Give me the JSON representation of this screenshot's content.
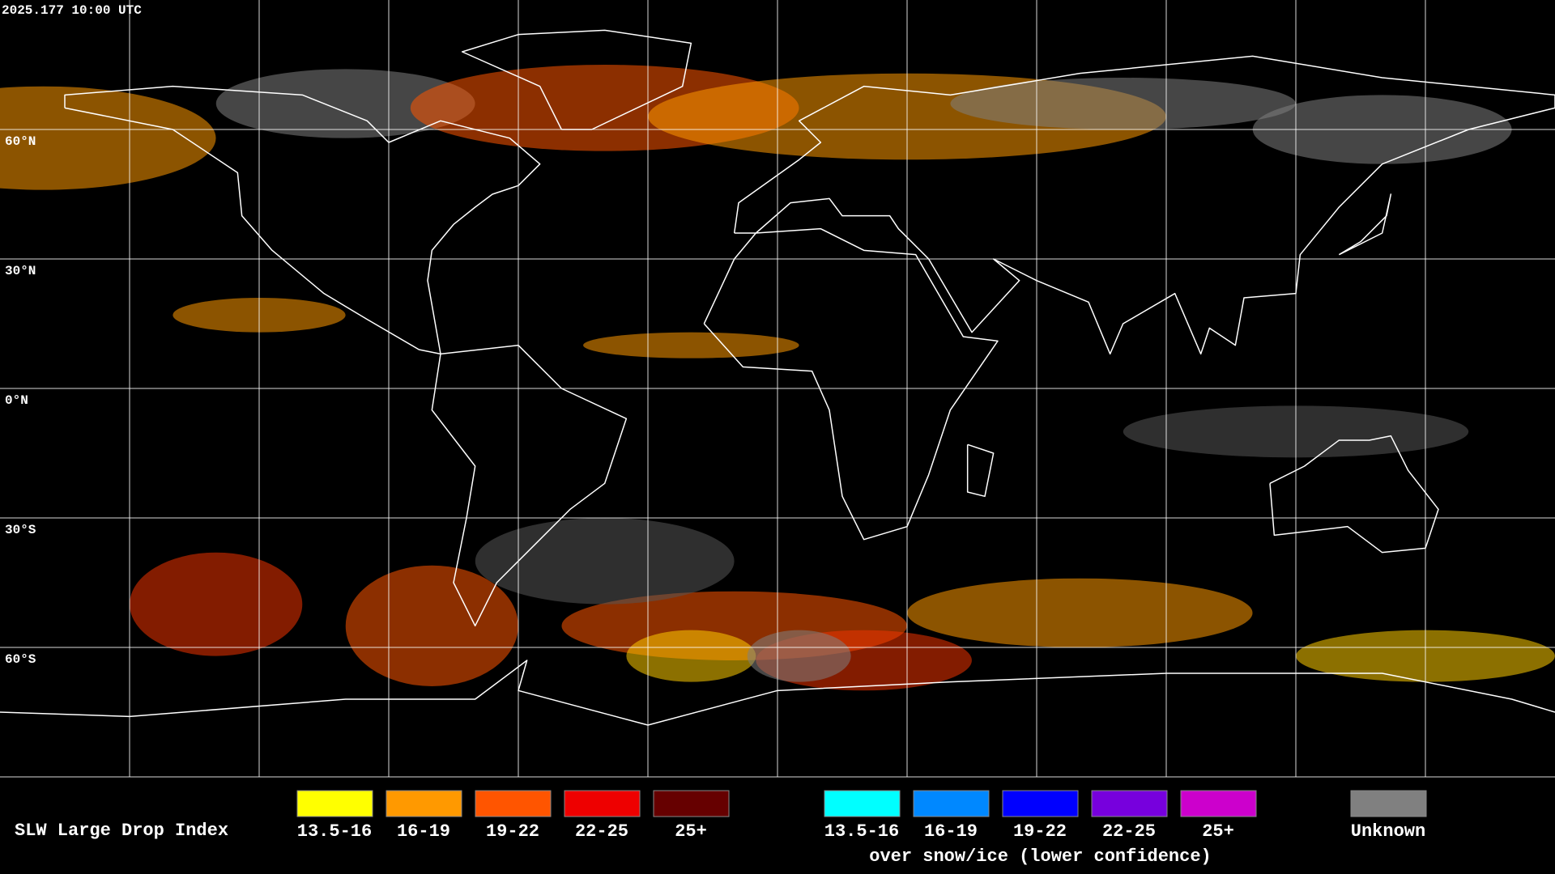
{
  "header": {
    "timestamp": "2025.177 10:00 UTC"
  },
  "latitude_labels": [
    "60°N",
    "30°N",
    "0°N",
    "30°S",
    "60°S"
  ],
  "legend": {
    "title": "SLW Large Drop Index",
    "groups": [
      {
        "items": [
          {
            "label": "13.5-16",
            "color": "#ffff00"
          },
          {
            "label": "16-19",
            "color": "#ff9900"
          },
          {
            "label": "19-22",
            "color": "#ff5500"
          },
          {
            "label": "22-25",
            "color": "#ee0000"
          },
          {
            "label": "25+",
            "color": "#660000"
          }
        ]
      },
      {
        "items": [
          {
            "label": "13.5-16",
            "color": "#00ffff"
          },
          {
            "label": "16-19",
            "color": "#0088ff"
          },
          {
            "label": "19-22",
            "color": "#0000ff"
          },
          {
            "label": "22-25",
            "color": "#7700dd"
          },
          {
            "label": "25+",
            "color": "#cc00cc"
          }
        ],
        "note": "over snow/ice (lower confidence)"
      },
      {
        "items": [
          {
            "label": "Unknown",
            "color": "#808080"
          }
        ]
      }
    ]
  }
}
